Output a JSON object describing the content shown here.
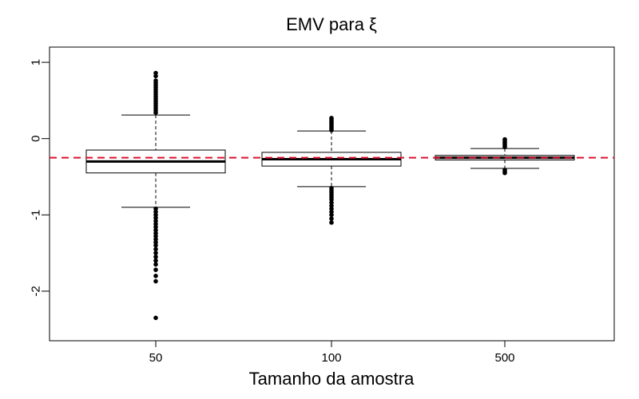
{
  "chart_data": {
    "type": "boxplot",
    "title": "EMV para ξ",
    "xlabel": "Tamanho da amostra",
    "ylabel": "",
    "ylim": [
      -2.65,
      1.2
    ],
    "yticks": [
      1,
      0,
      -1,
      -2
    ],
    "ytick_labels": [
      "1",
      "0",
      "-1",
      "-2"
    ],
    "categories": [
      "50",
      "100",
      "500"
    ],
    "reference_line": {
      "value": -0.25,
      "color": "#e0102f",
      "style": "dashed"
    },
    "grid": false,
    "boxes": [
      {
        "category": "50",
        "whisker_low": -0.9,
        "q1": -0.45,
        "median": -0.3,
        "q3": -0.15,
        "whisker_high": 0.31,
        "outliers": [
          0.86,
          0.82,
          0.76,
          0.73,
          0.7,
          0.67,
          0.64,
          0.61,
          0.58,
          0.55,
          0.52,
          0.49,
          0.46,
          0.43,
          0.4,
          0.37,
          0.34,
          -0.92,
          -0.96,
          -1.0,
          -1.04,
          -1.08,
          -1.12,
          -1.16,
          -1.2,
          -1.24,
          -1.28,
          -1.32,
          -1.36,
          -1.4,
          -1.45,
          -1.5,
          -1.55,
          -1.6,
          -1.65,
          -1.72,
          -1.8,
          -1.87,
          -2.35
        ]
      },
      {
        "category": "100",
        "whisker_low": -0.63,
        "q1": -0.36,
        "median": -0.27,
        "q3": -0.18,
        "whisker_high": 0.1,
        "outliers": [
          0.27,
          0.25,
          0.23,
          0.21,
          0.19,
          0.17,
          0.15,
          0.13,
          0.11,
          -0.65,
          -0.68,
          -0.71,
          -0.74,
          -0.77,
          -0.8,
          -0.84,
          -0.88,
          -0.92,
          -0.96,
          -1.0,
          -1.05,
          -1.1
        ]
      },
      {
        "category": "500",
        "whisker_low": -0.39,
        "q1": -0.28,
        "median": -0.25,
        "q3": -0.22,
        "whisker_high": -0.13,
        "outliers": [
          -0.01,
          -0.03,
          -0.05,
          -0.07,
          -0.09,
          -0.11,
          -0.41,
          -0.43,
          -0.45
        ]
      }
    ]
  }
}
